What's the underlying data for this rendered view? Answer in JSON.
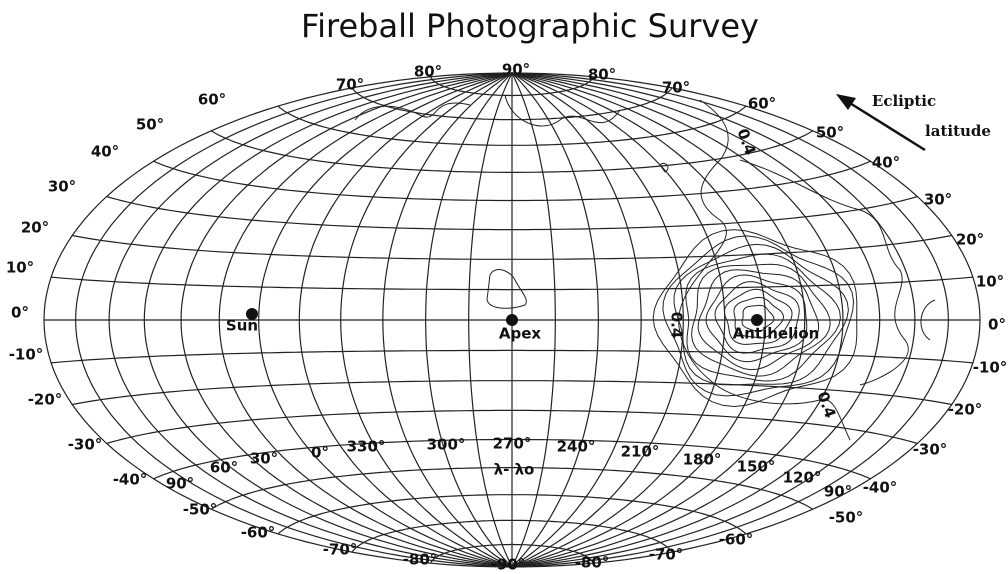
{
  "title": "Fireball Photographic Survey",
  "latitude_labels": [
    "70°",
    "80°",
    "90°",
    "80°",
    "70°",
    "60°",
    "50°",
    "40°",
    "30°",
    "20°",
    "10°",
    "0°",
    "-10°",
    "-20°",
    "-30°",
    "-40°",
    "-50°",
    "-60°",
    "-70°",
    "-80°",
    "-90°",
    "-80°",
    "-70°",
    "-60°",
    "-50°",
    "-40°",
    "-30°",
    "-20°",
    "-10°",
    "0°",
    "10°",
    "20°",
    "30°",
    "40°",
    "50°",
    "60°"
  ],
  "longitude_labels": [
    "90°",
    "60°",
    "30°",
    "0°",
    "330°",
    "300°",
    "270°",
    "240°",
    "210°",
    "180°",
    "150°",
    "120°",
    "90°"
  ],
  "longitude_axis_label": "λ- λo",
  "points": [
    {
      "label": "Sun"
    },
    {
      "label": "Apex"
    },
    {
      "label": "Antihelion"
    }
  ],
  "contour_labels": [
    "0.4",
    "0.4",
    "0.4"
  ],
  "arrow_label": [
    "Ecliptic",
    "latitude"
  ]
}
